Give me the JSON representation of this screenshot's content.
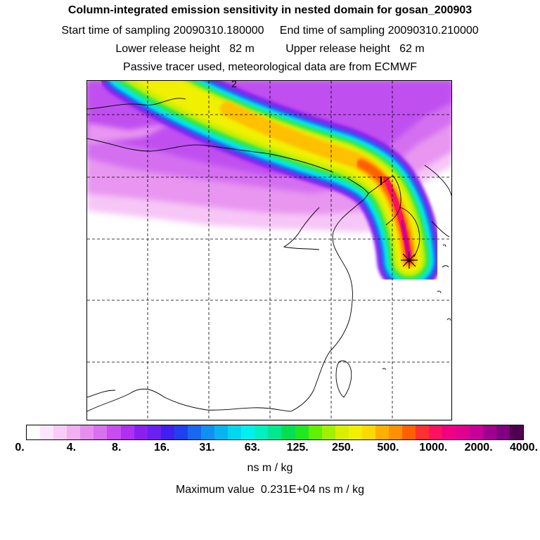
{
  "header": {
    "title": "Column-integrated emission sensitivity in nested domain for gosan_200903",
    "line2": "Start time of sampling 20090310.180000     End time of sampling 20090310.210000",
    "line3": "Lower release height   82 m          Upper release height   62 m",
    "line4": "Passive tracer used, meteorological data are from ECMWF"
  },
  "map": {
    "contour_label": "2",
    "receptor_marker": "star-marker"
  },
  "colorbar": {
    "colors": [
      "#ffffff",
      "#fde6fd",
      "#f8ccf8",
      "#f0b0f2",
      "#e68ef0",
      "#d870f0",
      "#c84cf0",
      "#b030f0",
      "#8a20f0",
      "#6a20f0",
      "#4020f0",
      "#2040f0",
      "#1868f0",
      "#1090f0",
      "#08b4f0",
      "#00d8f0",
      "#00f0f0",
      "#00f0c0",
      "#00e890",
      "#00e050",
      "#20e820",
      "#60f000",
      "#a0f000",
      "#d8f000",
      "#f0f000",
      "#ffd800",
      "#ffb000",
      "#ff9000",
      "#ff6000",
      "#ff3030",
      "#ff1060",
      "#f00080",
      "#e00090",
      "#c80098",
      "#a00090",
      "#800080",
      "#500050"
    ],
    "tick_labels": [
      "0.",
      "4.",
      "8.",
      "16.",
      "31.",
      "63.",
      "125.",
      "250.",
      "500.",
      "1000.",
      "2000.",
      "4000."
    ],
    "unit": "ns m / kg"
  },
  "max_value_text": "Maximum value  0.231E+04 ns m / kg"
}
